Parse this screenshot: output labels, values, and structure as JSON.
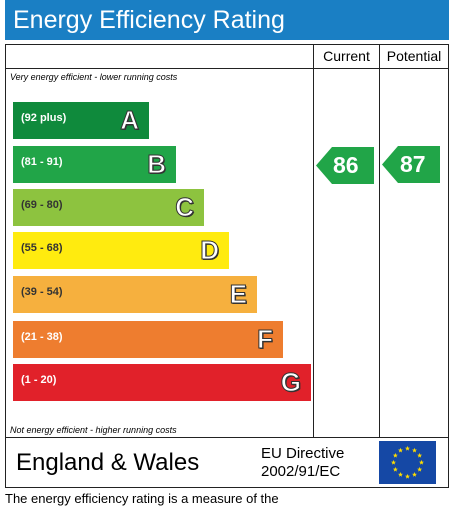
{
  "header": {
    "title": "Energy Efficiency Rating"
  },
  "columns": {
    "current": "Current",
    "potential": "Potential"
  },
  "notes": {
    "top": "Very energy efficient - lower running costs",
    "bottom": "Not energy efficient - higher running costs"
  },
  "bands": [
    {
      "range": "(92 plus)",
      "letter": "A",
      "color": "#0f8a3c"
    },
    {
      "range": "(81 - 91)",
      "letter": "B",
      "color": "#21a548"
    },
    {
      "range": "(69 - 80)",
      "letter": "C",
      "color": "#8dc33f"
    },
    {
      "range": "(55 - 68)",
      "letter": "D",
      "color": "#ffeb0f"
    },
    {
      "range": "(39 - 54)",
      "letter": "E",
      "color": "#f6b03e"
    },
    {
      "range": "(21 - 38)",
      "letter": "F",
      "color": "#ee7d2f"
    },
    {
      "range": "(1 - 20)",
      "letter": "G",
      "color": "#e1212a"
    }
  ],
  "ratings": {
    "current": {
      "value": "86",
      "band": "B",
      "color": "#21a548"
    },
    "potential": {
      "value": "87",
      "band": "B",
      "color": "#21a548"
    }
  },
  "footer": {
    "country": "England & Wales",
    "directive_line1": "EU Directive",
    "directive_line2": "2002/91/EC"
  },
  "bottom_text": "The energy efficiency rating is a measure of the"
}
